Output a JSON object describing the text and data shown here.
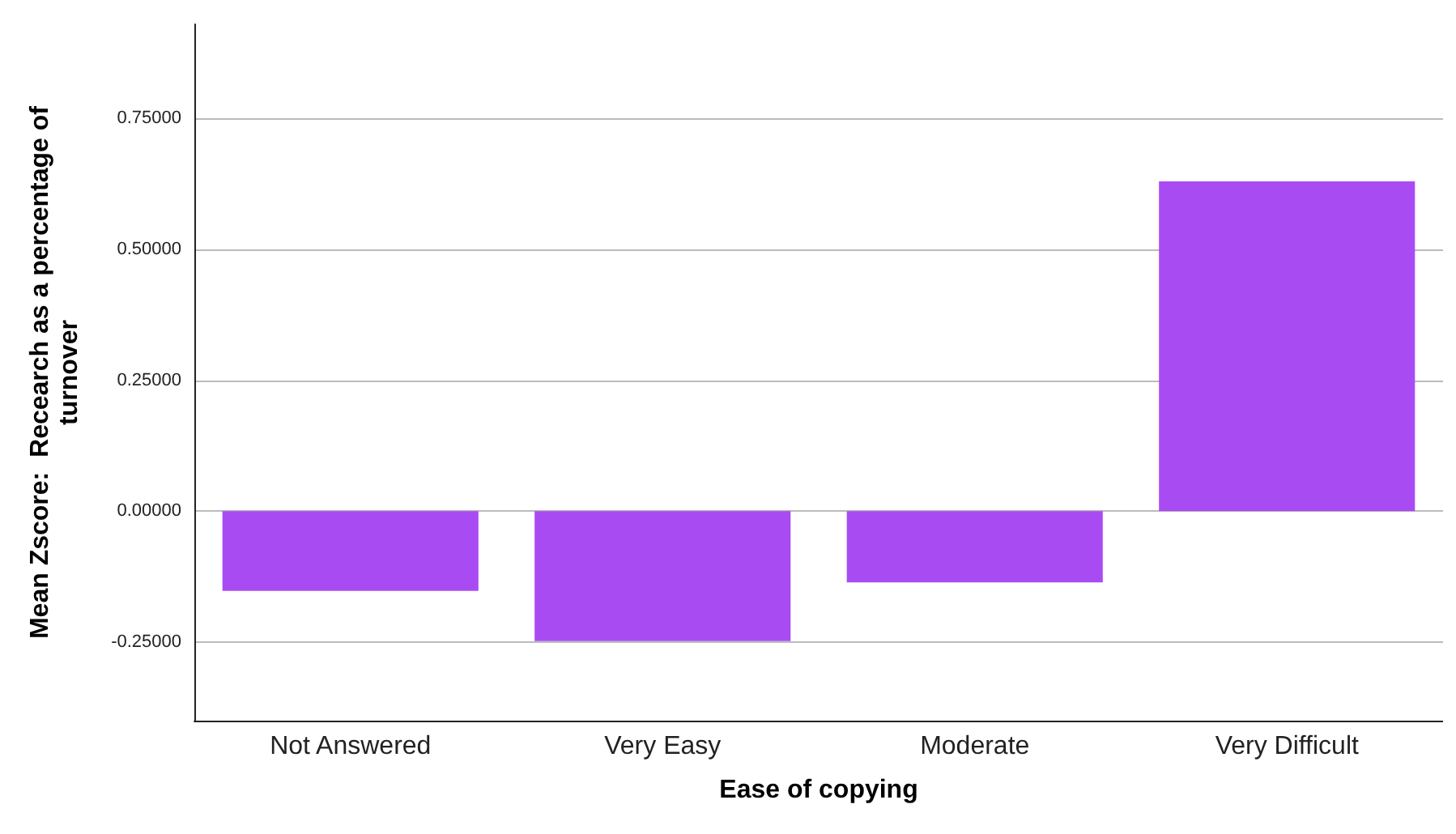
{
  "chart_data": {
    "type": "bar",
    "xlabel": "Ease of copying",
    "ylabel": "Mean Zscore:  Recearch as a percentage of turnover",
    "categories": [
      "Not Answered",
      "Very Easy",
      "Moderate",
      "Very Difficult"
    ],
    "series": [
      {
        "color": "#a94bf2",
        "values": [
          -0.152,
          -0.248,
          -0.136,
          0.63
        ]
      }
    ],
    "ylim": [
      -0.4,
      0.93
    ],
    "yticks": [
      {
        "value": -0.25,
        "label": "-0.25000"
      },
      {
        "value": 0,
        "label": "0.00000"
      },
      {
        "value": 0.25,
        "label": "0.25000"
      },
      {
        "value": 0.5,
        "label": "0.50000"
      },
      {
        "value": 0.75,
        "label": "0.75000"
      }
    ],
    "grid": "y"
  }
}
